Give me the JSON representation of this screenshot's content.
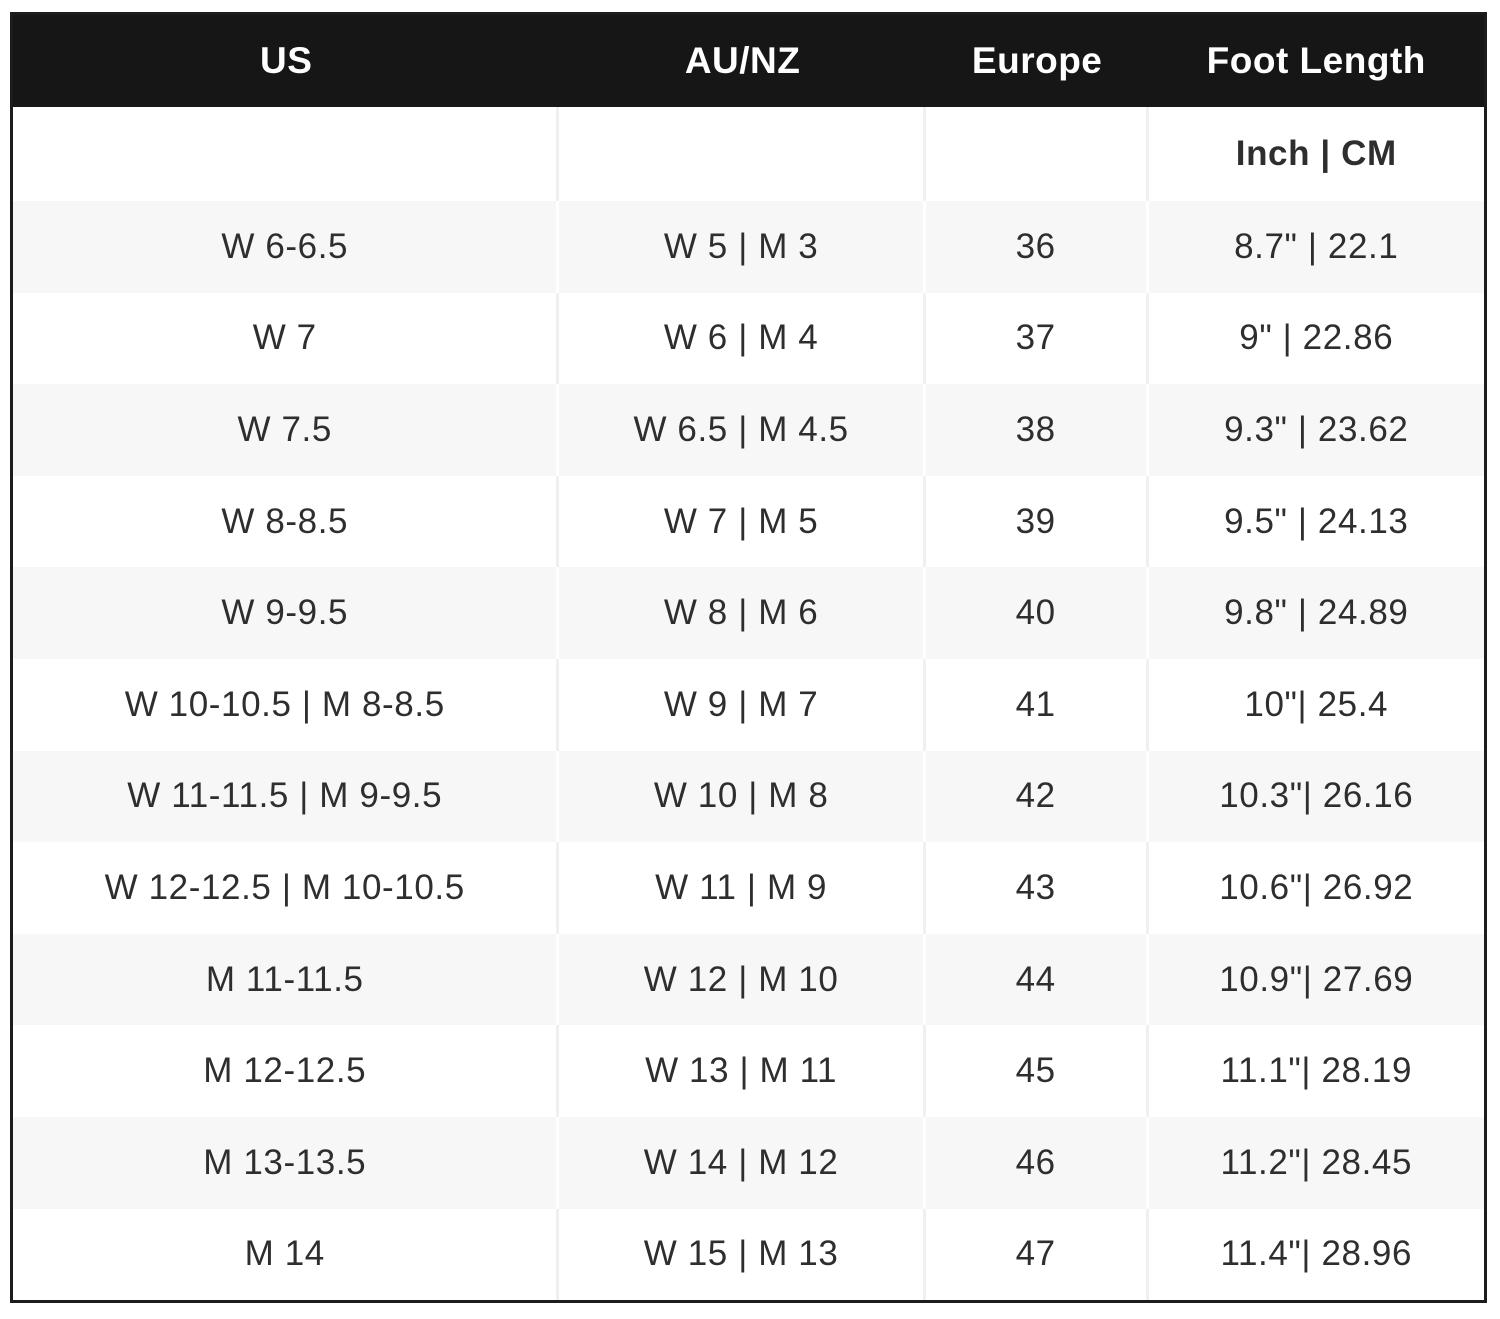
{
  "chart_data": {
    "type": "table",
    "columns": [
      "US",
      "AU/NZ",
      "Europe",
      "Foot Length"
    ],
    "unit_label": "Inch | CM",
    "rows": [
      [
        "W 6-6.5",
        "W 5 | M 3",
        "36",
        "8.7\" | 22.1"
      ],
      [
        "W 7",
        "W 6 | M 4",
        "37",
        "9\" | 22.86"
      ],
      [
        "W 7.5",
        "W 6.5 | M 4.5",
        "38",
        "9.3\" | 23.62"
      ],
      [
        "W 8-8.5",
        "W 7 | M 5",
        "39",
        "9.5\" | 24.13"
      ],
      [
        "W 9-9.5",
        "W 8 | M 6",
        "40",
        "9.8\" | 24.89"
      ],
      [
        "W 10-10.5 | M 8-8.5",
        "W 9 | M 7",
        "41",
        "10\"| 25.4"
      ],
      [
        "W 11-11.5 | M 9-9.5",
        "W 10 | M 8",
        "42",
        "10.3\"| 26.16"
      ],
      [
        "W 12-12.5 | M 10-10.5",
        "W 11 | M 9",
        "43",
        "10.6\"| 26.92"
      ],
      [
        "M 11-11.5",
        "W 12 | M 10",
        "44",
        "10.9\"| 27.69"
      ],
      [
        "M 12-12.5",
        "W 13 | M 11",
        "45",
        "11.1\"| 28.19"
      ],
      [
        "M 13-13.5",
        "W 14 | M 12",
        "46",
        "11.2\"| 28.45"
      ],
      [
        "M 14",
        "W 15 | M 13",
        "47",
        "11.4\"| 28.96"
      ]
    ],
    "layout": {
      "striped_rows": "odd data rows shaded",
      "legend": "none",
      "grid": "vertical dividers only"
    }
  },
  "colors": {
    "header_bg": "#161616",
    "header_text": "#ffffff",
    "row_stripe": "#f7f7f7",
    "row_white": "#ffffff",
    "divider": "#f0f0f1",
    "outer_border": "#1c1c1c",
    "body_text": "#2e2e2e"
  }
}
